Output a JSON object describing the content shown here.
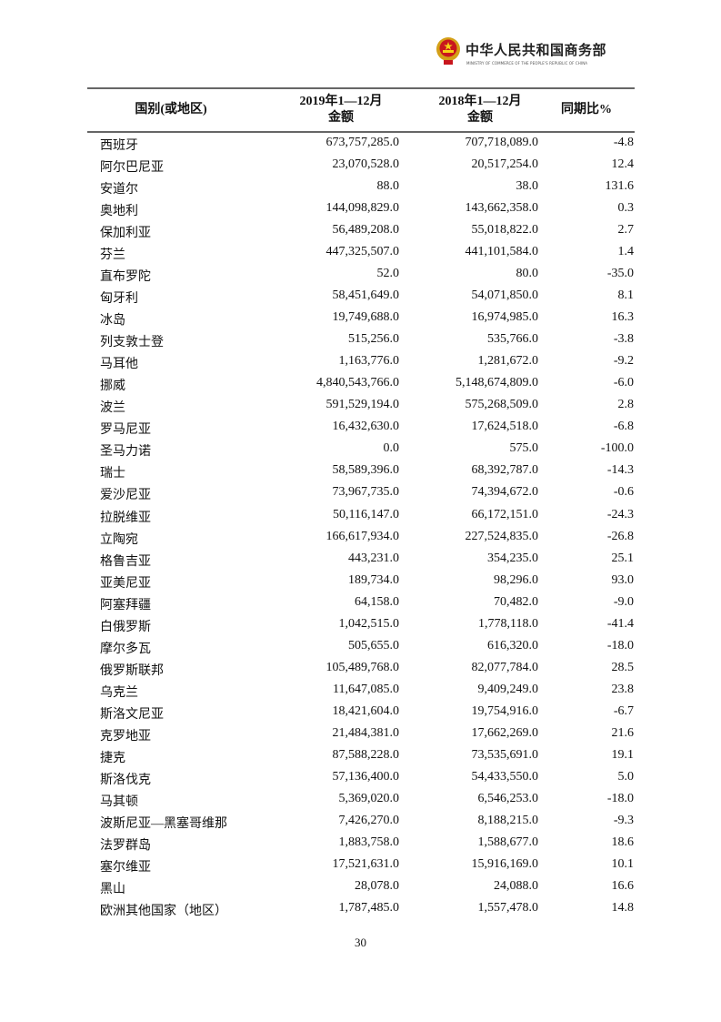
{
  "header": {
    "org_name_cn": "中华人民共和国商务部",
    "org_name_en": "MINISTRY OF COMMERCE OF THE PEOPLE'S REPUBLIC OF CHINA"
  },
  "table": {
    "columns": [
      {
        "line1": "国别(或地区)",
        "line2": ""
      },
      {
        "line1": "2019年1—12月",
        "line2": "金额"
      },
      {
        "line1": "2018年1—12月",
        "line2": "金额"
      },
      {
        "line1": "同期比%",
        "line2": ""
      }
    ],
    "rows": [
      [
        "西班牙",
        "673,757,285.0",
        "707,718,089.0",
        "-4.8"
      ],
      [
        "阿尔巴尼亚",
        "23,070,528.0",
        "20,517,254.0",
        "12.4"
      ],
      [
        "安道尔",
        "88.0",
        "38.0",
        "131.6"
      ],
      [
        "奥地利",
        "144,098,829.0",
        "143,662,358.0",
        "0.3"
      ],
      [
        "保加利亚",
        "56,489,208.0",
        "55,018,822.0",
        "2.7"
      ],
      [
        "芬兰",
        "447,325,507.0",
        "441,101,584.0",
        "1.4"
      ],
      [
        "直布罗陀",
        "52.0",
        "80.0",
        "-35.0"
      ],
      [
        "匈牙利",
        "58,451,649.0",
        "54,071,850.0",
        "8.1"
      ],
      [
        "冰岛",
        "19,749,688.0",
        "16,974,985.0",
        "16.3"
      ],
      [
        "列支敦士登",
        "515,256.0",
        "535,766.0",
        "-3.8"
      ],
      [
        "马耳他",
        "1,163,776.0",
        "1,281,672.0",
        "-9.2"
      ],
      [
        "挪威",
        "4,840,543,766.0",
        "5,148,674,809.0",
        "-6.0"
      ],
      [
        "波兰",
        "591,529,194.0",
        "575,268,509.0",
        "2.8"
      ],
      [
        "罗马尼亚",
        "16,432,630.0",
        "17,624,518.0",
        "-6.8"
      ],
      [
        "圣马力诺",
        "0.0",
        "575.0",
        "-100.0"
      ],
      [
        "瑞士",
        "58,589,396.0",
        "68,392,787.0",
        "-14.3"
      ],
      [
        "爱沙尼亚",
        "73,967,735.0",
        "74,394,672.0",
        "-0.6"
      ],
      [
        "拉脱维亚",
        "50,116,147.0",
        "66,172,151.0",
        "-24.3"
      ],
      [
        "立陶宛",
        "166,617,934.0",
        "227,524,835.0",
        "-26.8"
      ],
      [
        "格鲁吉亚",
        "443,231.0",
        "354,235.0",
        "25.1"
      ],
      [
        "亚美尼亚",
        "189,734.0",
        "98,296.0",
        "93.0"
      ],
      [
        "阿塞拜疆",
        "64,158.0",
        "70,482.0",
        "-9.0"
      ],
      [
        "白俄罗斯",
        "1,042,515.0",
        "1,778,118.0",
        "-41.4"
      ],
      [
        "摩尔多瓦",
        "505,655.0",
        "616,320.0",
        "-18.0"
      ],
      [
        "俄罗斯联邦",
        "105,489,768.0",
        "82,077,784.0",
        "28.5"
      ],
      [
        "乌克兰",
        "11,647,085.0",
        "9,409,249.0",
        "23.8"
      ],
      [
        "斯洛文尼亚",
        "18,421,604.0",
        "19,754,916.0",
        "-6.7"
      ],
      [
        "克罗地亚",
        "21,484,381.0",
        "17,662,269.0",
        "21.6"
      ],
      [
        "捷克",
        "87,588,228.0",
        "73,535,691.0",
        "19.1"
      ],
      [
        "斯洛伐克",
        "57,136,400.0",
        "54,433,550.0",
        "5.0"
      ],
      [
        "马其顿",
        "5,369,020.0",
        "6,546,253.0",
        "-18.0"
      ],
      [
        "波斯尼亚—黑塞哥维那",
        "7,426,270.0",
        "8,188,215.0",
        "-9.3"
      ],
      [
        "法罗群岛",
        "1,883,758.0",
        "1,588,677.0",
        "18.6"
      ],
      [
        "塞尔维亚",
        "17,521,631.0",
        "15,916,169.0",
        "10.1"
      ],
      [
        "黑山",
        "28,078.0",
        "24,088.0",
        "16.6"
      ],
      [
        "欧洲其他国家（地区）",
        "1,787,485.0",
        "1,557,478.0",
        "14.8"
      ]
    ]
  },
  "footer": {
    "page_number": "30"
  }
}
